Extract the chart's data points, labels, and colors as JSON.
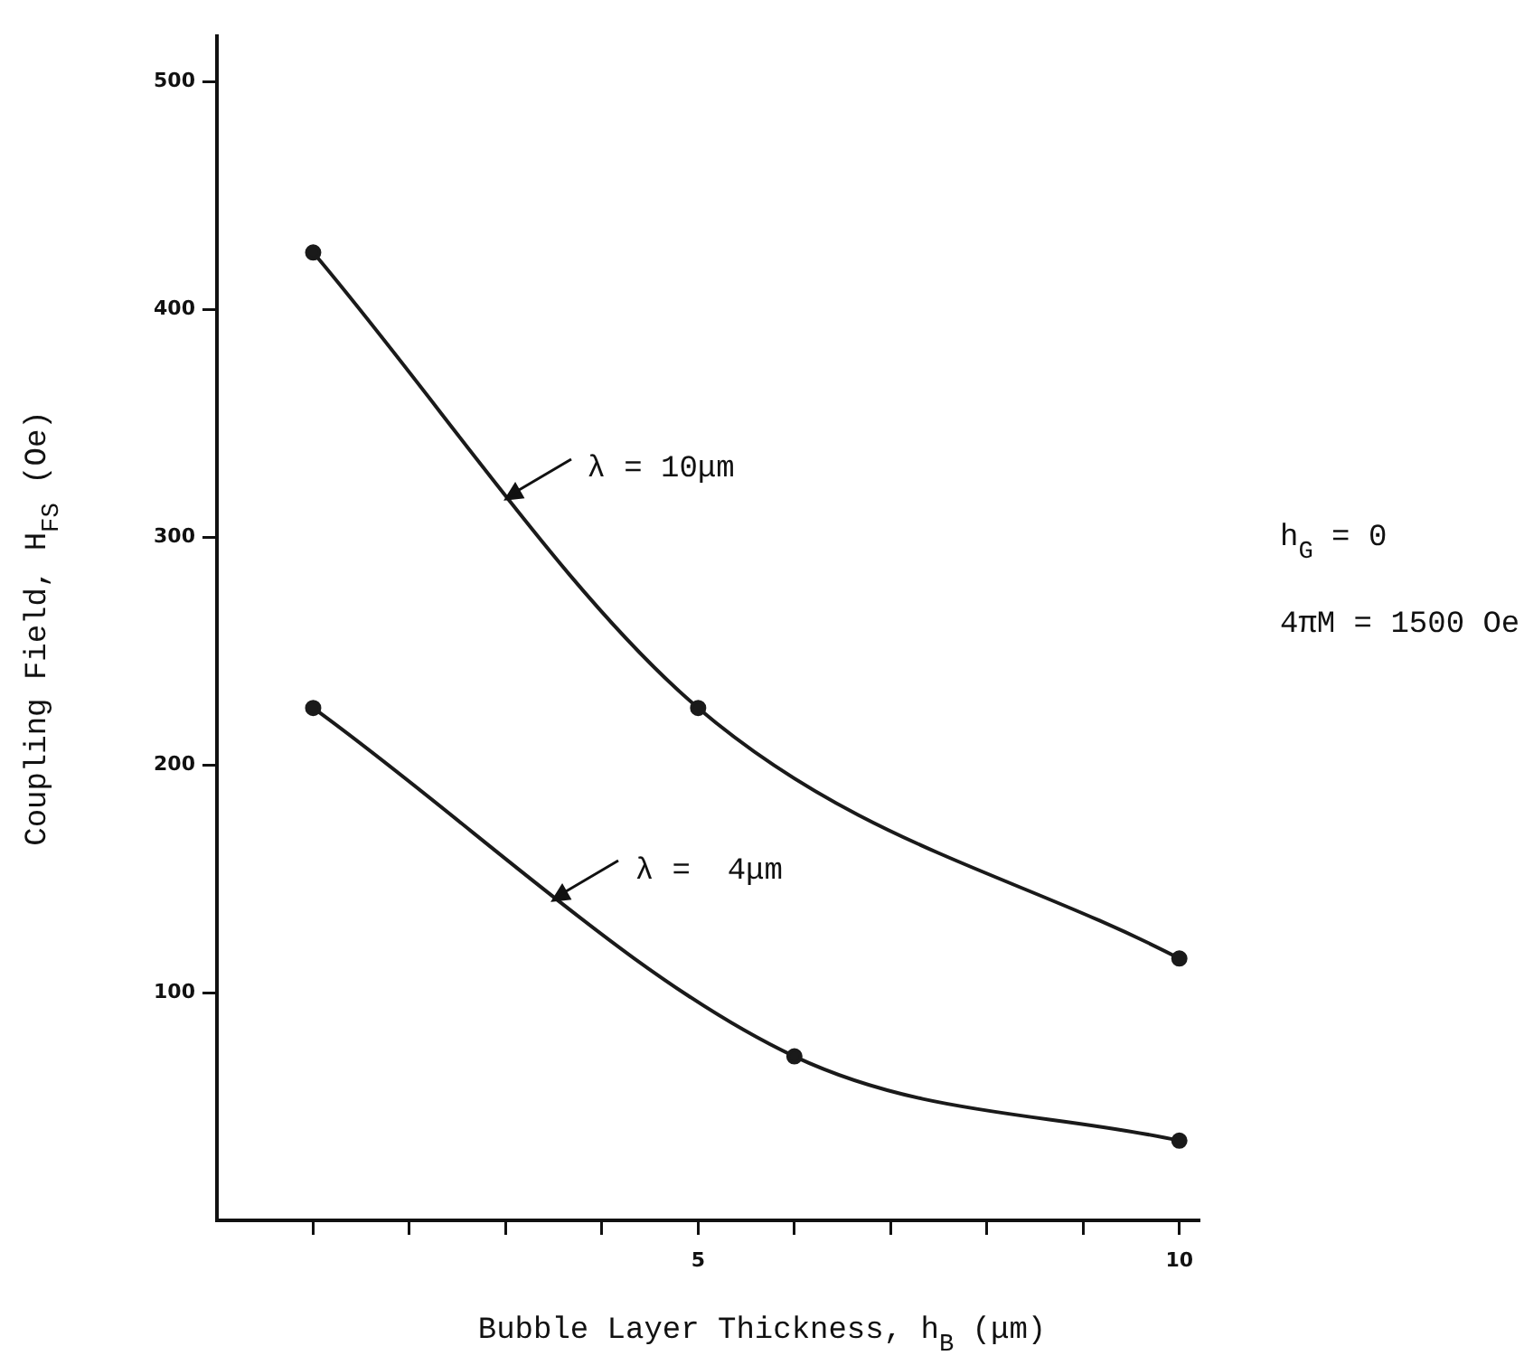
{
  "chart_data": {
    "type": "line",
    "xlabel": "Bubble Layer Thickness, h$_{B}$ (μm)",
    "ylabel": "Coupling Field, H$_{FS}$ (Oe)",
    "series": [
      {
        "name": "λ = 10μm",
        "color": "#1a1a1a",
        "x": [
          1,
          5,
          10
        ],
        "values": [
          425,
          225,
          115
        ]
      },
      {
        "name": "λ =  4μm",
        "color": "#1a1a1a",
        "x": [
          1,
          6,
          10
        ],
        "values": [
          225,
          72,
          35
        ]
      }
    ],
    "xlim": [
      0,
      10.2
    ],
    "xticks": [
      {
        "value": 1,
        "label": null
      },
      {
        "value": 2,
        "label": null
      },
      {
        "value": 3,
        "label": null
      },
      {
        "value": 4,
        "label": null
      },
      5,
      {
        "value": 6,
        "label": null
      },
      {
        "value": 7,
        "label": null
      },
      {
        "value": 8,
        "label": null
      },
      {
        "value": 9,
        "label": null
      },
      10
    ],
    "ylim": [
      0,
      520
    ],
    "yticks": [
      100,
      200,
      300,
      400,
      500
    ],
    "annotations": [
      "h$_{G}$ = 0",
      "4πM = 1500 Oe"
    ],
    "marker": "circle",
    "line_style": "solid",
    "grid": false,
    "legend": "center"
  }
}
